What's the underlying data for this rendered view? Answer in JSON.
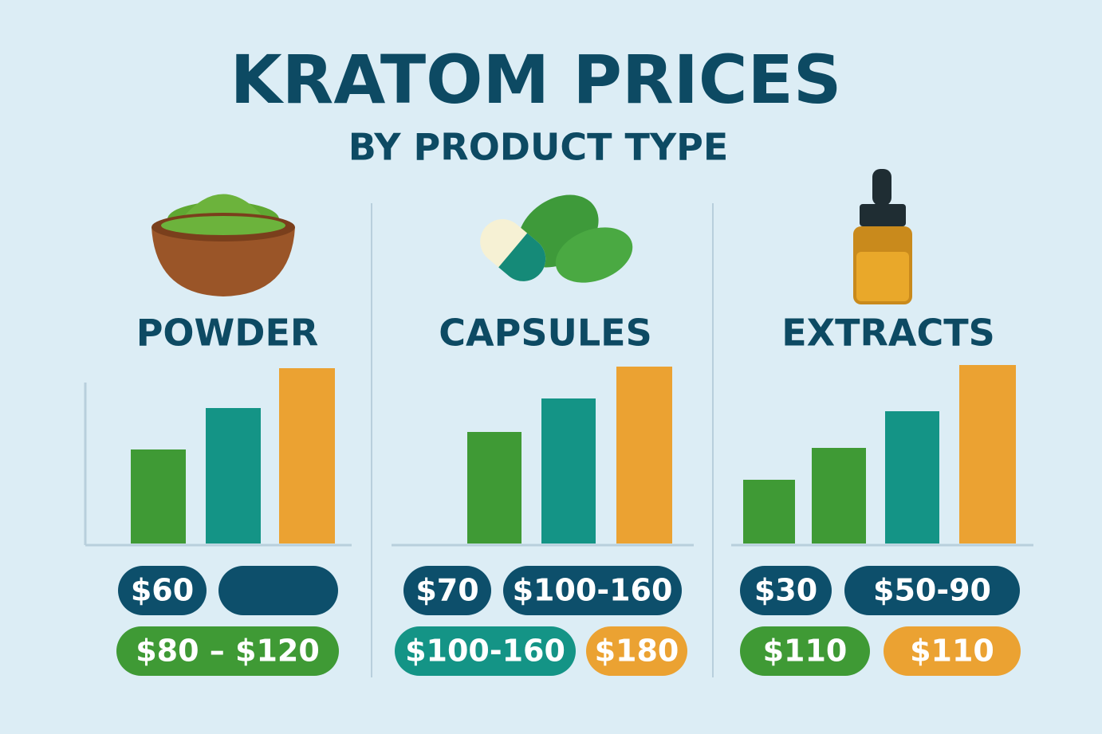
{
  "title": "KRATOM PRICES",
  "subtitle": "BY PRODUCT TYPE",
  "chart_data": [
    {
      "type": "bar",
      "title": "POWDER",
      "values": [
        59,
        85,
        110
      ],
      "colors": [
        "#3f9a35",
        "#149486",
        "#eba232"
      ],
      "tags": [
        {
          "label": "$60",
          "color": "#0d4f6b"
        },
        {
          "label": "$80 – $120",
          "color": "#3f9a35"
        }
      ]
    },
    {
      "type": "bar",
      "title": "CAPSULES",
      "values": [
        70,
        91,
        111
      ],
      "colors": [
        "#3f9a35",
        "#149486",
        "#eba232"
      ],
      "tags": [
        {
          "label": "$70",
          "color": "#0d4f6b"
        },
        {
          "label": "$100-160",
          "color": "#0d4f6b"
        },
        {
          "label": "$100-160",
          "color": "#149486"
        },
        {
          "label": "$180",
          "color": "#eba232"
        }
      ]
    },
    {
      "type": "bar",
      "title": "EXTRACTS",
      "values": [
        40,
        60,
        83,
        112
      ],
      "colors": [
        "#3f9a35",
        "#3f9a35",
        "#149486",
        "#eba232"
      ],
      "tags": [
        {
          "label": "$30",
          "color": "#0d4f6b"
        },
        {
          "label": "$50-90",
          "color": "#0d4f6b"
        },
        {
          "label": "$110",
          "color": "#3f9a35"
        },
        {
          "label": "$110",
          "color": "#eba232"
        }
      ]
    }
  ]
}
